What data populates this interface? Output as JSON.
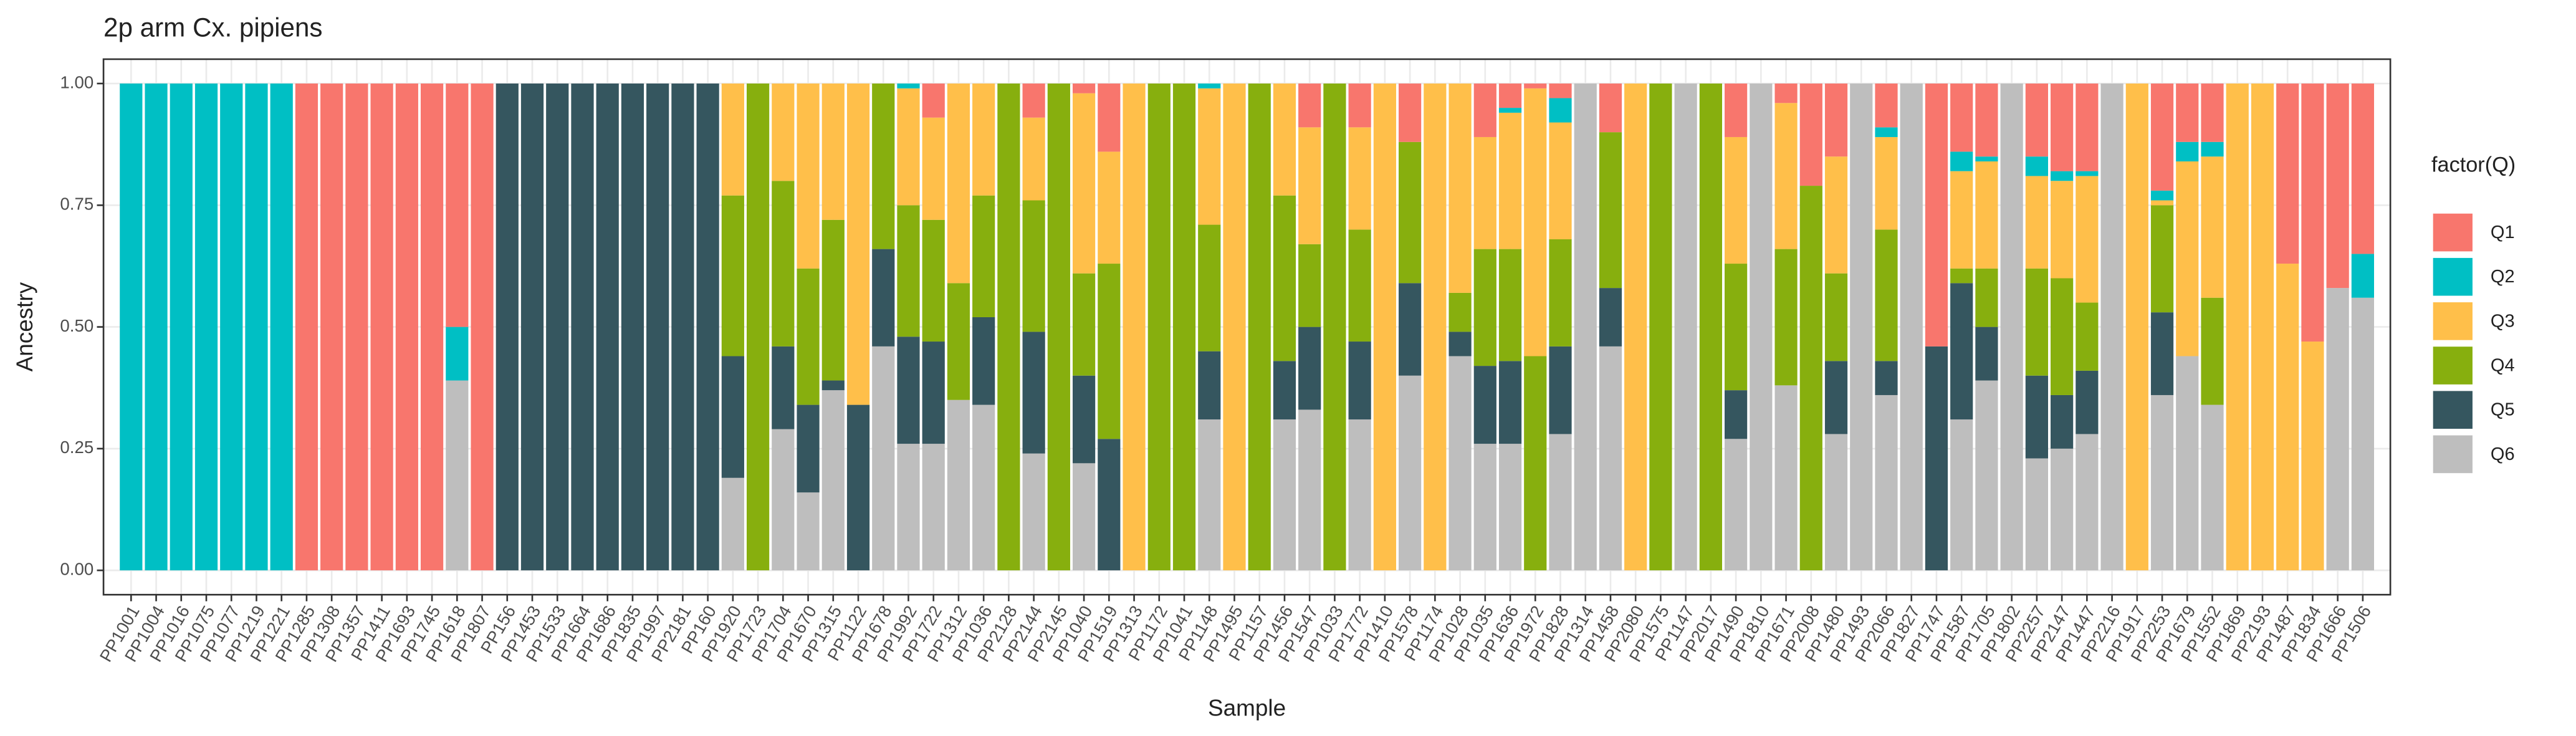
{
  "chart_data": {
    "type": "stacked_bar",
    "title": "2p arm Cx. pipiens",
    "x_label": "Sample",
    "y_label": "Ancestry",
    "categories": [
      "PP1001",
      "PP1004",
      "PP1016",
      "PP1075",
      "PP1077",
      "PP1219",
      "PP1221",
      "PP1285",
      "PP1308",
      "PP1357",
      "PP1411",
      "PP1693",
      "PP1745",
      "PP1618",
      "PP1807",
      "PP156",
      "PP1453",
      "PP1533",
      "PP1664",
      "PP1686",
      "PP1835",
      "PP1997",
      "PP2181",
      "PP160",
      "PP1920",
      "PP1723",
      "PP1704",
      "PP1670",
      "PP1315",
      "PP1122",
      "PP1678",
      "PP1992",
      "PP1722",
      "PP1312",
      "PP1036",
      "PP2128",
      "PP2144",
      "PP2145",
      "PP1040",
      "PP1519",
      "PP1313",
      "PP1172",
      "PP1041",
      "PP1148",
      "PP1495",
      "PP1157",
      "PP1456",
      "PP1547",
      "PP1033",
      "PP1772",
      "PP1410",
      "PP1578",
      "PP1174",
      "PP1028",
      "PP1035",
      "PP1636",
      "PP1972",
      "PP1828",
      "PP1314",
      "PP1458",
      "PP2080",
      "PP1575",
      "PP1147",
      "PP2017",
      "PP1490",
      "PP1810",
      "PP1671",
      "PP2008",
      "PP1480",
      "PP1493",
      "PP2066",
      "PP1827",
      "PP1747",
      "PP1587",
      "PP1705",
      "PP1802",
      "PP2257",
      "PP2147",
      "PP1447",
      "PP2216",
      "PP1917",
      "PP2253",
      "PP1679",
      "PP1552",
      "PP1869",
      "PP2193",
      "PP1487",
      "PP1834",
      "PP1666",
      "PP1506"
    ],
    "legend_title": "factor(Q)",
    "legend_position": "right",
    "series": [
      {
        "name": "Q1",
        "color": "#F8766D",
        "values": [
          0,
          0,
          0,
          0,
          0,
          0,
          0,
          1,
          1,
          1,
          1,
          1,
          1,
          0.5,
          1,
          0,
          0,
          0,
          0,
          0,
          0,
          0,
          0,
          0,
          0,
          0,
          0,
          0,
          0,
          0,
          0,
          0,
          0.07,
          0,
          0,
          0,
          0.07,
          0,
          0.02,
          0.14,
          0,
          0,
          0,
          0,
          0,
          0,
          0,
          0.09,
          0,
          0.09,
          0,
          0.12,
          0,
          0,
          0.11,
          0.05,
          0.01,
          0.03,
          0,
          0.1,
          0,
          0,
          0,
          0,
          0.11,
          0,
          0.04,
          0.21,
          0.15,
          0,
          0.09,
          0,
          0.54,
          0.14,
          0.15,
          0,
          0.15,
          0.18,
          0.18,
          0,
          0,
          0.22,
          0.12,
          0.12,
          0,
          0,
          0.37,
          0.53,
          0.42,
          0.35
        ]
      },
      {
        "name": "Q2",
        "color": "#00BFC4",
        "values": [
          1,
          1,
          1,
          1,
          1,
          1,
          1,
          0,
          0,
          0,
          0,
          0,
          0,
          0.11,
          0,
          0,
          0,
          0,
          0,
          0,
          0,
          0,
          0,
          0,
          0,
          0,
          0,
          0,
          0,
          0,
          0,
          0.01,
          0,
          0,
          0,
          0,
          0,
          0,
          0,
          0,
          0,
          0,
          0,
          0.01,
          0,
          0,
          0,
          0,
          0,
          0,
          0,
          0,
          0,
          0,
          0,
          0.01,
          0,
          0.05,
          0,
          0,
          0,
          0,
          0,
          0,
          0,
          0,
          0,
          0,
          0,
          0,
          0.02,
          0,
          0,
          0.04,
          0.01,
          0,
          0.04,
          0.02,
          0.01,
          0,
          0,
          0.02,
          0.04,
          0.03,
          0,
          0,
          0,
          0,
          0,
          0.09
        ]
      },
      {
        "name": "Q3",
        "color": "#FFBF4A",
        "values": [
          0,
          0,
          0,
          0,
          0,
          0,
          0,
          0,
          0,
          0,
          0,
          0,
          0,
          0,
          0,
          0,
          0,
          0,
          0,
          0,
          0,
          0,
          0,
          0,
          0.23,
          0,
          0.2,
          0.38,
          0.28,
          0.66,
          0,
          0.24,
          0.21,
          0.41,
          0.23,
          0,
          0.17,
          0,
          0.37,
          0.23,
          1,
          0,
          0,
          0.28,
          1,
          0,
          0.23,
          0.24,
          0,
          0.21,
          1,
          0,
          1,
          0.43,
          0.23,
          0.28,
          0.55,
          0.24,
          0,
          0,
          1,
          0,
          0,
          0,
          0.26,
          0,
          0.3,
          0,
          0.24,
          0,
          0.19,
          0,
          0,
          0.2,
          0.22,
          0,
          0.19,
          0.2,
          0.26,
          0,
          1,
          0.01,
          0.4,
          0.29,
          1,
          1,
          0.63,
          0.47,
          0,
          0
        ]
      },
      {
        "name": "Q4",
        "color": "#87AF0E",
        "values": [
          0,
          0,
          0,
          0,
          0,
          0,
          0,
          0,
          0,
          0,
          0,
          0,
          0,
          0,
          0,
          0,
          0,
          0,
          0,
          0,
          0,
          0,
          0,
          0,
          0.33,
          1,
          0.34,
          0.28,
          0.33,
          0,
          0.34,
          0.27,
          0.25,
          0.24,
          0.25,
          1,
          0.27,
          1,
          0.21,
          0.36,
          0,
          1,
          1,
          0.26,
          0,
          1,
          0.34,
          0.17,
          1,
          0.23,
          0,
          0.29,
          0,
          0.08,
          0.24,
          0.23,
          0.44,
          0.22,
          0,
          0.32,
          0,
          1,
          0,
          1,
          0.26,
          0,
          0.28,
          0.79,
          0.18,
          0,
          0.27,
          0,
          0,
          0.03,
          0.12,
          0,
          0.22,
          0.24,
          0.14,
          0,
          0,
          0.22,
          0,
          0.22,
          0,
          0,
          0,
          0,
          0,
          0
        ]
      },
      {
        "name": "Q5",
        "color": "#35565F",
        "values": [
          0,
          0,
          0,
          0,
          0,
          0,
          0,
          0,
          0,
          0,
          0,
          0,
          0,
          0,
          0,
          1,
          1,
          1,
          1,
          1,
          1,
          1,
          1,
          1,
          0.25,
          0,
          0.17,
          0.18,
          0.02,
          0.34,
          0.2,
          0.22,
          0.21,
          0,
          0.18,
          0,
          0.25,
          0,
          0.18,
          0.27,
          0,
          0,
          0,
          0.14,
          0,
          0,
          0.12,
          0.17,
          0,
          0.16,
          0,
          0.19,
          0,
          0.05,
          0.16,
          0.17,
          0,
          0.18,
          0,
          0.12,
          0,
          0,
          0,
          0,
          0.1,
          0,
          0,
          0,
          0.15,
          0,
          0.07,
          0,
          0.46,
          0.28,
          0.11,
          0,
          0.17,
          0.11,
          0.13,
          0,
          0,
          0.17,
          0,
          0,
          0,
          0,
          0,
          0,
          0,
          0
        ]
      },
      {
        "name": "Q6",
        "color": "#BEBEBE",
        "values": [
          0,
          0,
          0,
          0,
          0,
          0,
          0,
          0,
          0,
          0,
          0,
          0,
          0,
          0.39,
          0,
          0,
          0,
          0,
          0,
          0,
          0,
          0,
          0,
          0,
          0.19,
          0,
          0.29,
          0.16,
          0.37,
          0,
          0.46,
          0.26,
          0.26,
          0.35,
          0.34,
          0,
          0.24,
          0,
          0.22,
          0,
          0,
          0,
          0,
          0.31,
          0,
          0,
          0.31,
          0.33,
          0,
          0.31,
          0,
          0.4,
          0,
          0.44,
          0.26,
          0.26,
          0,
          0.28,
          1,
          0.46,
          0,
          0,
          1,
          0,
          0.27,
          1,
          0.38,
          0,
          0.28,
          1,
          0.36,
          1,
          0,
          0.31,
          0.39,
          1,
          0.23,
          0.25,
          0.28,
          1,
          0,
          0.36,
          0.44,
          0.34,
          0,
          0,
          0,
          0,
          0.58,
          0.56
        ]
      }
    ],
    "ylim": [
      -0.05,
      1.05
    ],
    "yticks": [
      {
        "value": 0,
        "label": "0.00"
      },
      {
        "value": 0.25,
        "label": "0.25"
      },
      {
        "value": 0.5,
        "label": "0.50"
      },
      {
        "value": 0.75,
        "label": "0.75"
      },
      {
        "value": 1,
        "label": "1.00"
      }
    ],
    "grid": true
  }
}
